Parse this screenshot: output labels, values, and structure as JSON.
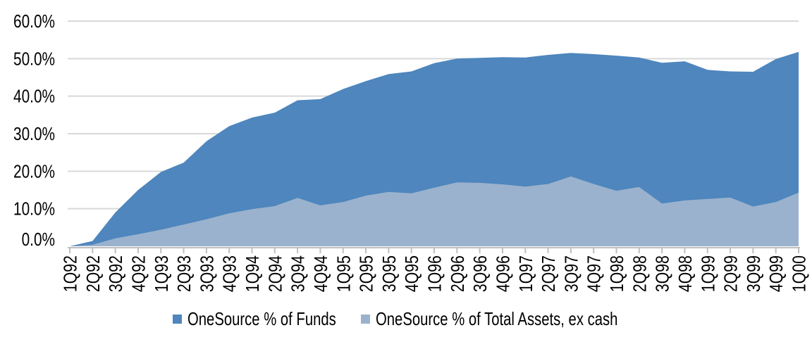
{
  "chart_data": {
    "type": "area",
    "title": "",
    "xlabel": "",
    "ylabel": "",
    "categories": [
      "1Q92",
      "2Q92",
      "3Q92",
      "4Q92",
      "1Q93",
      "2Q93",
      "3Q93",
      "4Q93",
      "1Q94",
      "2Q94",
      "3Q94",
      "4Q94",
      "1Q95",
      "2Q95",
      "3Q95",
      "4Q95",
      "1Q96",
      "2Q96",
      "3Q96",
      "4Q96",
      "1Q97",
      "2Q97",
      "3Q97",
      "4Q97",
      "1Q98",
      "2Q98",
      "3Q98",
      "4Q98",
      "1Q99",
      "2Q99",
      "3Q99",
      "4Q99",
      "1Q00"
    ],
    "series": [
      {
        "name": "OneSource % of Funds",
        "color": "#4E86BD",
        "values": [
          0.0,
          1.4,
          9.0,
          15.0,
          19.8,
          22.3,
          28.0,
          32.0,
          34.3,
          35.6,
          38.9,
          39.2,
          41.9,
          44.0,
          45.9,
          46.6,
          48.8,
          50.0,
          50.2,
          50.4,
          50.3,
          51.0,
          51.5,
          51.2,
          50.8,
          50.3,
          48.9,
          49.3,
          47.0,
          46.6,
          46.5,
          49.9,
          51.8
        ]
      },
      {
        "name": "OneSource % of Total Assets, ex cash",
        "color": "#9AB2CD",
        "values": [
          0.0,
          0.4,
          2.1,
          3.2,
          4.4,
          5.8,
          7.2,
          8.8,
          9.9,
          10.7,
          12.9,
          10.9,
          11.8,
          13.5,
          14.5,
          14.1,
          15.6,
          17.0,
          16.9,
          16.5,
          15.9,
          16.6,
          18.6,
          16.6,
          14.8,
          15.8,
          11.4,
          12.2,
          12.6,
          13.0,
          10.6,
          11.8,
          14.3
        ]
      }
    ],
    "ylim": [
      0,
      60
    ],
    "ytick_step": 10,
    "ytick_labels": [
      "0.0%",
      "10.0%",
      "20.0%",
      "30.0%",
      "40.0%",
      "50.0%",
      "60.0%"
    ],
    "grid": "horizontal",
    "overlap_mode": "layered (not stacked)",
    "legend_position": "bottom",
    "gridline_color": "#D9D9D9",
    "axis_color": "#BFBFBF",
    "text_color": "#000000",
    "background_color": "#FFFFFF"
  }
}
